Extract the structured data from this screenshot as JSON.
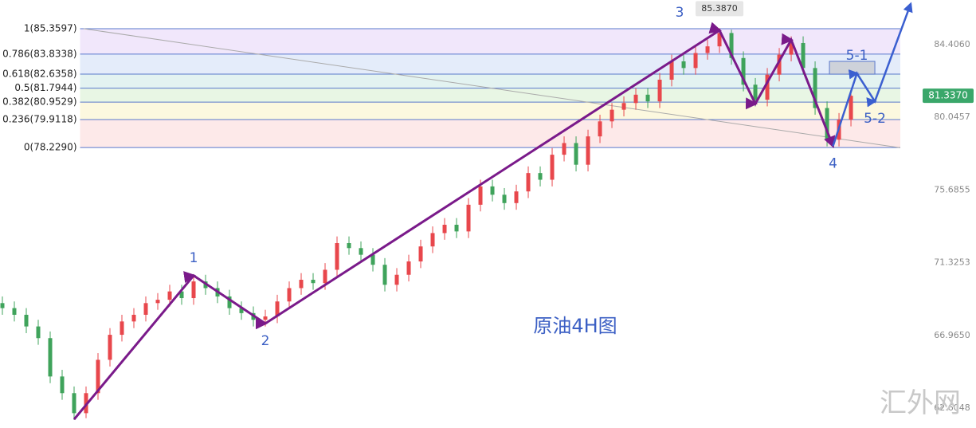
{
  "chart_data": {
    "type": "candlestick",
    "title": "原油4H图",
    "watermark": "汇外网",
    "up_color": "#e8474c",
    "down_color": "#3fa35b",
    "xlim": [
      -0.2,
      75.13
    ],
    "ylim": [
      61.41,
      87.08
    ],
    "yticks": [
      {
        "value": 84.406,
        "label": "84.4060"
      },
      {
        "value": 80.0457,
        "label": "80.0457"
      },
      {
        "value": 75.6855,
        "label": "75.6855"
      },
      {
        "value": 71.3253,
        "label": "71.3253"
      },
      {
        "value": 66.965,
        "label": "66.9650"
      },
      {
        "value": 62.6048,
        "label": "62.6048"
      }
    ],
    "candles": {
      "open": [
        68.9,
        68.6,
        68.2,
        67.5,
        66.8,
        64.5,
        63.5,
        62.3,
        63.5,
        65.5,
        67.0,
        67.8,
        68.2,
        68.9,
        69.1,
        69.6,
        69.2,
        70.2,
        69.8,
        69.3,
        68.6,
        68.3,
        67.9,
        68.1,
        69.0,
        69.8,
        70.3,
        70.1,
        70.9,
        72.5,
        72.2,
        71.8,
        71.2,
        70.0,
        70.6,
        71.4,
        72.3,
        73.1,
        73.6,
        73.2,
        74.8,
        75.9,
        75.4,
        74.9,
        75.6,
        76.7,
        76.3,
        77.8,
        78.5,
        77.2,
        78.9,
        79.8,
        80.5,
        80.9,
        81.4,
        81.0,
        82.3,
        83.4,
        83.0,
        83.9,
        84.3,
        85.1,
        83.6,
        82.0,
        81.1,
        82.6,
        83.8,
        84.5,
        83.0,
        80.6,
        78.7,
        79.9
      ],
      "high": [
        69.3,
        69.0,
        68.6,
        67.9,
        67.2,
        64.9,
        63.9,
        63.9,
        65.9,
        67.4,
        68.2,
        68.6,
        69.3,
        69.5,
        70.0,
        70.0,
        70.55,
        70.6,
        70.2,
        69.7,
        69.0,
        68.7,
        68.5,
        69.4,
        70.2,
        70.7,
        70.7,
        71.3,
        72.9,
        72.9,
        72.6,
        72.2,
        71.6,
        71.0,
        71.8,
        72.7,
        73.5,
        74.0,
        74.0,
        75.2,
        76.3,
        76.3,
        75.8,
        76.0,
        77.1,
        77.1,
        78.2,
        78.9,
        78.9,
        79.3,
        80.2,
        80.9,
        81.3,
        81.8,
        81.8,
        82.7,
        83.8,
        83.8,
        84.3,
        84.7,
        85.387,
        85.3,
        84.0,
        82.4,
        83.0,
        84.2,
        84.9,
        84.9,
        83.4,
        81.0,
        80.3,
        81.7
      ],
      "low": [
        68.2,
        67.8,
        67.1,
        66.4,
        64.1,
        63.1,
        61.9,
        62.0,
        63.1,
        65.1,
        66.6,
        67.4,
        67.8,
        68.5,
        68.7,
        68.8,
        68.8,
        69.4,
        68.9,
        68.2,
        67.9,
        67.5,
        67.5,
        67.7,
        68.6,
        69.4,
        69.7,
        69.7,
        70.5,
        71.8,
        71.4,
        70.8,
        69.6,
        69.6,
        70.2,
        71.0,
        71.9,
        72.7,
        72.8,
        72.8,
        74.4,
        75.0,
        74.5,
        74.5,
        75.2,
        75.9,
        75.9,
        77.4,
        76.8,
        76.8,
        78.5,
        79.4,
        80.1,
        80.5,
        80.6,
        80.6,
        81.9,
        82.6,
        82.6,
        83.5,
        83.9,
        83.2,
        81.6,
        80.7,
        80.7,
        82.2,
        83.4,
        82.6,
        80.2,
        78.3,
        78.3,
        79.5
      ],
      "close": [
        68.6,
        68.2,
        67.5,
        66.8,
        64.5,
        63.5,
        62.3,
        63.5,
        65.5,
        67.0,
        67.8,
        68.2,
        68.9,
        69.1,
        69.6,
        69.2,
        70.2,
        69.8,
        69.3,
        68.6,
        68.3,
        67.9,
        68.1,
        69.0,
        69.8,
        70.3,
        70.1,
        70.9,
        72.5,
        72.2,
        71.8,
        71.2,
        70.0,
        70.6,
        71.4,
        72.3,
        73.1,
        73.6,
        73.2,
        74.8,
        75.9,
        75.4,
        74.9,
        75.6,
        76.7,
        76.3,
        77.8,
        78.5,
        77.2,
        78.9,
        79.8,
        80.5,
        80.9,
        81.4,
        81.0,
        82.3,
        83.4,
        83.0,
        83.9,
        84.3,
        85.1,
        83.6,
        82.0,
        81.1,
        82.6,
        83.8,
        84.5,
        83.0,
        80.6,
        78.7,
        79.9,
        81.337
      ]
    },
    "fib_x": [
      6.5,
      75.13
    ],
    "fib_levels": [
      {
        "value": 85.3597,
        "label": "1(85.3597)"
      },
      {
        "value": 83.8338,
        "label": "0.786(83.8338)"
      },
      {
        "value": 82.6358,
        "label": "0.618(82.6358)"
      },
      {
        "value": 81.7944,
        "label": "0.5(81.7944)"
      },
      {
        "value": 80.9529,
        "label": "0.382(80.9529)"
      },
      {
        "value": 79.9118,
        "label": "0.236(79.9118)"
      },
      {
        "value": 78.229,
        "label": "0(78.2290)"
      }
    ],
    "fib_colors": [
      "#f1e7fb",
      "#e4ecfa",
      "#e3f3f1",
      "#e8f6e4",
      "#fcf8df",
      "#fde9e9"
    ],
    "fib_line_color": "#5a78cc",
    "trendline": {
      "x": [
        6.8,
        75.13
      ],
      "y": [
        85.36,
        78.22
      ]
    },
    "waves": {
      "color": "#7a1a8a",
      "x": [
        6,
        16,
        22,
        60,
        63,
        66,
        69.5
      ],
      "y": [
        61.93,
        70.55,
        67.68,
        85.26,
        80.86,
        84.69,
        78.32
      ],
      "labels": [
        null,
        "1",
        "2",
        "3",
        null,
        null,
        "4"
      ]
    },
    "projection": {
      "color": "#3b5fd0",
      "x": [
        69.5,
        71.5,
        73,
        76
      ],
      "y": [
        78.32,
        82.68,
        81.0,
        86.85
      ],
      "labels": [
        null,
        "5-1",
        "5-2",
        null
      ]
    },
    "target_box": {
      "x": [
        69.2,
        73.0
      ],
      "y": [
        82.63,
        83.4
      ]
    },
    "peak_label": {
      "x": 60,
      "value": 85.387,
      "label": "85.3870"
    },
    "last_price": {
      "value": 81.337,
      "label": "81.3370",
      "color": "#3aa76a"
    }
  }
}
